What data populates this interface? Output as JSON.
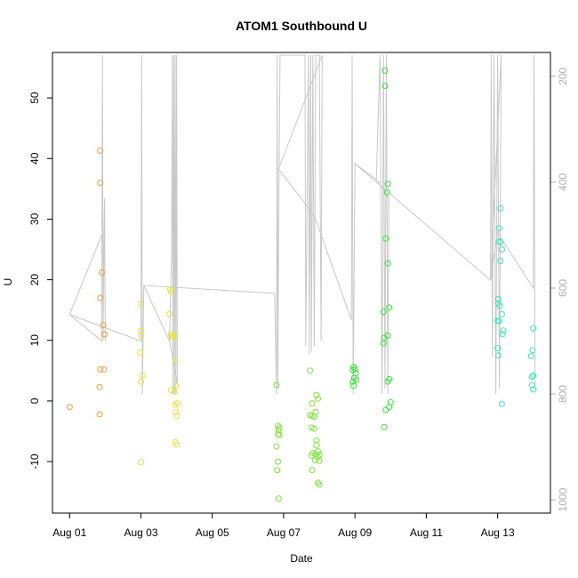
{
  "chart_data": {
    "type": "scatter",
    "title": "ATOM1 Southbound U",
    "xlabel": "Date",
    "ylabel": "U",
    "x_unit": "days since 2015-08-01",
    "xlim": [
      -0.48,
      13.48
    ],
    "ylim": [
      -18.5,
      57.5
    ],
    "x_ticks": [
      {
        "value": 0,
        "label": "Aug 01"
      },
      {
        "value": 2,
        "label": "Aug 03"
      },
      {
        "value": 4,
        "label": "Aug 05"
      },
      {
        "value": 6,
        "label": "Aug 07"
      },
      {
        "value": 8,
        "label": "Aug 09"
      },
      {
        "value": 10,
        "label": "Aug 11"
      },
      {
        "value": 12,
        "label": "Aug 13"
      }
    ],
    "y_ticks": [
      -10,
      0,
      10,
      20,
      30,
      40,
      50
    ],
    "y2_axis": {
      "reversed": true,
      "lim": [
        1025,
        155
      ],
      "ticks": [
        200,
        400,
        600,
        800,
        1000
      ]
    },
    "grid": false,
    "legend": "none",
    "overlay_series": {
      "name": "pressure profile track",
      "color": "#c8c8c8",
      "points": [
        [
          0.0,
          650
        ],
        [
          0.9,
          700
        ],
        [
          0.92,
          160
        ],
        [
          0.94,
          700
        ],
        [
          0.96,
          520
        ],
        [
          0.98,
          430
        ],
        [
          1.0,
          700
        ],
        [
          0.98,
          500
        ],
        [
          0.9,
          500
        ],
        [
          0.0,
          650
        ],
        [
          2.0,
          700
        ],
        [
          2.02,
          160
        ],
        [
          2.04,
          800
        ],
        [
          2.08,
          595
        ],
        [
          2.8,
          700
        ],
        [
          2.86,
          530
        ],
        [
          2.88,
          160
        ],
        [
          2.9,
          800
        ],
        [
          2.92,
          160
        ],
        [
          2.94,
          800
        ],
        [
          2.96,
          160
        ],
        [
          2.98,
          800
        ],
        [
          3.0,
          160
        ],
        [
          3.02,
          780
        ],
        [
          2.8,
          700
        ],
        [
          2.08,
          595
        ],
        [
          5.75,
          610
        ],
        [
          5.8,
          800
        ],
        [
          5.82,
          160
        ],
        [
          5.84,
          790
        ],
        [
          5.86,
          510
        ],
        [
          5.9,
          160
        ],
        [
          6.0,
          160
        ],
        [
          6.6,
          160
        ],
        [
          6.62,
          710
        ],
        [
          6.7,
          160
        ],
        [
          6.72,
          725
        ],
        [
          6.76,
          160
        ],
        [
          6.78,
          720
        ],
        [
          6.82,
          160
        ],
        [
          6.86,
          710
        ],
        [
          6.9,
          160
        ],
        [
          6.95,
          160
        ],
        [
          7.0,
          160
        ],
        [
          7.05,
          700
        ],
        [
          7.08,
          160
        ],
        [
          5.86,
          375
        ],
        [
          6.6,
          440
        ],
        [
          6.9,
          470
        ],
        [
          7.9,
          660
        ],
        [
          7.92,
          160
        ],
        [
          7.95,
          800
        ],
        [
          8.0,
          365
        ],
        [
          8.6,
          395
        ],
        [
          8.7,
          160
        ],
        [
          8.76,
          800
        ],
        [
          8.8,
          160
        ],
        [
          8.84,
          790
        ],
        [
          8.88,
          160
        ],
        [
          8.92,
          800
        ],
        [
          8.95,
          430
        ],
        [
          8.6,
          395
        ],
        [
          8.0,
          365
        ],
        [
          11.8,
          585
        ],
        [
          11.82,
          160
        ],
        [
          11.85,
          730
        ],
        [
          11.9,
          160
        ],
        [
          11.95,
          800
        ],
        [
          12.0,
          160
        ],
        [
          12.05,
          790
        ],
        [
          12.1,
          160
        ],
        [
          11.8,
          585
        ],
        [
          12.0,
          495
        ],
        [
          13.0,
          600
        ],
        [
          13.02,
          160
        ],
        [
          13.05,
          790
        ]
      ]
    },
    "series": [
      {
        "color": "#f0a03c",
        "points": [
          [
            0.0,
            -1.0
          ],
          [
            0.86,
            41.3
          ],
          [
            0.86,
            36.0
          ],
          [
            0.9,
            21.2
          ],
          [
            0.86,
            17.0
          ],
          [
            0.94,
            12.5
          ],
          [
            0.98,
            11.0
          ],
          [
            0.86,
            5.2
          ],
          [
            0.96,
            5.2
          ],
          [
            0.84,
            2.3
          ],
          [
            0.84,
            -2.2
          ]
        ]
      },
      {
        "color": "#e4e43c",
        "points": [
          [
            2.0,
            16.0
          ],
          [
            2.0,
            11.6
          ],
          [
            2.0,
            10.8
          ],
          [
            1.98,
            8.0
          ],
          [
            2.04,
            4.2
          ],
          [
            2.0,
            3.2
          ],
          [
            2.0,
            -10.1
          ],
          [
            2.84,
            18.0
          ],
          [
            2.82,
            18.4
          ],
          [
            2.8,
            14.3
          ],
          [
            2.84,
            11.0
          ],
          [
            2.86,
            10.6
          ],
          [
            2.9,
            10.5
          ],
          [
            2.92,
            10.8
          ],
          [
            2.96,
            6.7
          ],
          [
            2.98,
            2.5
          ],
          [
            2.84,
            1.8
          ],
          [
            2.94,
            1.5
          ],
          [
            2.96,
            -0.6
          ],
          [
            3.02,
            -0.4
          ],
          [
            2.98,
            -1.8
          ],
          [
            3.0,
            -2.5
          ],
          [
            2.96,
            -6.8
          ],
          [
            3.0,
            -7.2
          ]
        ]
      },
      {
        "color": "#7ee83c",
        "points": [
          [
            5.8,
            2.6
          ],
          [
            5.84,
            -4.1
          ],
          [
            5.88,
            -4.4
          ],
          [
            5.86,
            -4.8
          ],
          [
            5.84,
            -5.5
          ],
          [
            5.88,
            -5.6
          ],
          [
            5.8,
            -7.5
          ],
          [
            5.84,
            -10.0
          ],
          [
            5.82,
            -11.4
          ],
          [
            5.86,
            -16.1
          ],
          [
            6.74,
            5.0
          ],
          [
            6.92,
            1.0
          ],
          [
            6.96,
            0.4
          ],
          [
            6.8,
            -0.4
          ],
          [
            6.9,
            -1.8
          ],
          [
            6.74,
            -2.3
          ],
          [
            6.8,
            -2.5
          ],
          [
            6.86,
            -2.6
          ],
          [
            6.78,
            -4.4
          ],
          [
            6.86,
            -4.6
          ],
          [
            6.92,
            -6.5
          ],
          [
            6.92,
            -7.3
          ],
          [
            6.96,
            -8.3
          ],
          [
            6.82,
            -8.6
          ],
          [
            6.9,
            -8.8
          ],
          [
            7.0,
            -8.9
          ],
          [
            6.78,
            -9.0
          ],
          [
            6.96,
            -9.3
          ],
          [
            6.88,
            -9.8
          ],
          [
            7.0,
            -9.9
          ],
          [
            6.8,
            -11.4
          ],
          [
            6.96,
            -13.5
          ],
          [
            7.0,
            -13.8
          ]
        ]
      },
      {
        "color": "#3ce23c",
        "points": [
          [
            7.96,
            5.6
          ],
          [
            8.0,
            5.3
          ],
          [
            7.94,
            5.1
          ],
          [
            8.02,
            4.6
          ],
          [
            7.98,
            3.8
          ],
          [
            8.04,
            3.5
          ],
          [
            7.94,
            3.2
          ],
          [
            7.96,
            2.5
          ],
          [
            8.84,
            54.5
          ],
          [
            8.84,
            52.0
          ],
          [
            8.92,
            35.8
          ],
          [
            8.9,
            34.4
          ],
          [
            8.86,
            26.8
          ],
          [
            8.92,
            22.7
          ],
          [
            8.96,
            15.4
          ],
          [
            8.8,
            14.7
          ],
          [
            8.82,
            10.4
          ],
          [
            8.92,
            10.8
          ],
          [
            8.8,
            9.5
          ],
          [
            8.96,
            3.6
          ],
          [
            8.92,
            3.2
          ],
          [
            9.0,
            -0.2
          ],
          [
            8.96,
            -1.0
          ],
          [
            8.86,
            -1.5
          ],
          [
            8.82,
            -4.3
          ]
        ]
      },
      {
        "color": "#3ce8b4",
        "points": [
          [
            12.08,
            31.8
          ],
          [
            12.04,
            28.5
          ],
          [
            12.08,
            26.2
          ],
          [
            12.04,
            26.3
          ],
          [
            12.12,
            25.0
          ],
          [
            12.08,
            23.1
          ],
          [
            12.02,
            16.8
          ],
          [
            12.02,
            16.1
          ],
          [
            12.06,
            15.7
          ],
          [
            12.12,
            14.3
          ],
          [
            12.0,
            13.2
          ],
          [
            12.04,
            13.2
          ],
          [
            12.16,
            11.6
          ],
          [
            12.14,
            11.0
          ],
          [
            12.0,
            8.7
          ],
          [
            12.02,
            7.5
          ],
          [
            12.12,
            -0.5
          ],
          [
            13.0,
            12.0
          ],
          [
            12.98,
            8.4
          ],
          [
            12.94,
            7.4
          ],
          [
            13.0,
            4.2
          ],
          [
            12.96,
            4.0
          ],
          [
            12.96,
            2.6
          ],
          [
            13.0,
            1.9
          ]
        ]
      }
    ]
  }
}
